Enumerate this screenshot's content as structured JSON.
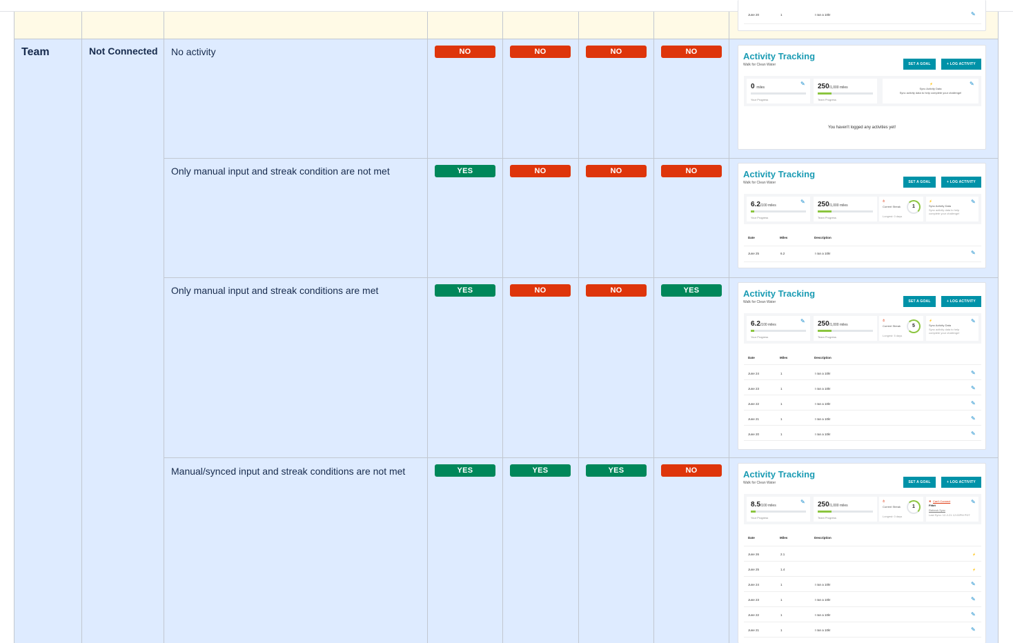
{
  "group": "Team",
  "status": "Not Connected",
  "top_row": {
    "date": "June 20",
    "miles": "1",
    "desc": "I ran a 10k!"
  },
  "card_common": {
    "title": "Activity Tracking",
    "subtitle": "Walk for Clean Water",
    "set_goal": "SET A GOAL",
    "log_activity": "+ LOG ACTIVITY",
    "your_progress": "Your Progress",
    "team_progress": "Team Progress",
    "team_value": "250",
    "team_unit": "/1,000 miles",
    "current_streak": "Current Streak",
    "sync_title": "Sync Activity Data",
    "sync_desc": "Sync activity data to help complete your challenge!",
    "col_date": "Date",
    "col_miles": "Miles",
    "col_desc": "Description",
    "run_desc": "I ran a 10k!"
  },
  "rows": [
    {
      "scenario": "No activity",
      "badges": [
        "NO",
        "NO",
        "NO",
        "NO"
      ],
      "your_value": "0",
      "your_unit": "miles",
      "empty_text": "You haven't logged any activities yet!"
    },
    {
      "scenario": "Only manual input and streak condition are not met",
      "badges": [
        "YES",
        "NO",
        "NO",
        "NO"
      ],
      "your_value": "6.2",
      "your_unit": "/100 miles",
      "streak_value": "1",
      "streak_longest": "Longest: 0 days",
      "activities": [
        {
          "date": "June 25",
          "miles": "6.2",
          "desc": "I ran a 10k!"
        }
      ]
    },
    {
      "scenario": "Only manual input and streak conditions are met",
      "badges": [
        "YES",
        "NO",
        "NO",
        "YES"
      ],
      "your_value": "6.2",
      "your_unit": "/100 miles",
      "streak_value": "5",
      "streak_longest": "Longest: 5 days",
      "activities": [
        {
          "date": "June 24",
          "miles": "1",
          "desc": "I ran a 10k!"
        },
        {
          "date": "June 23",
          "miles": "1",
          "desc": "I ran a 10k!"
        },
        {
          "date": "June 22",
          "miles": "1",
          "desc": "I ran a 10k!"
        },
        {
          "date": "June 21",
          "miles": "1",
          "desc": "I ran a 10k!"
        },
        {
          "date": "June 20",
          "miles": "1",
          "desc": "I ran a 10k!"
        }
      ]
    },
    {
      "scenario": "Manual/synced input and streak conditions are not met",
      "badges": [
        "YES",
        "YES",
        "YES",
        "NO"
      ],
      "your_value": "8.5",
      "your_unit": "/100 miles",
      "streak_value": "1",
      "streak_longest": "Longest: 0 days",
      "device_status": "Can't Connect",
      "device_name": "Fitbit",
      "device_refresh": "Refresh Sync",
      "device_last_sync": "Last Sync: 12-2-21 12:00PM PDT",
      "activities": [
        {
          "date": "June 26",
          "miles": "2.1",
          "desc": ""
        },
        {
          "date": "June 25",
          "miles": "1.4",
          "desc": ""
        },
        {
          "date": "June 24",
          "miles": "1",
          "desc": "I ran a 10k!"
        },
        {
          "date": "June 23",
          "miles": "1",
          "desc": "I ran a 10k!"
        },
        {
          "date": "June 22",
          "miles": "1",
          "desc": "I ran a 10k!"
        },
        {
          "date": "June 21",
          "miles": "1",
          "desc": "I ran a 10k!"
        }
      ]
    }
  ],
  "colors": {
    "no": "#de350b",
    "yes": "#00875a",
    "teal": "#1a9bb3",
    "cell_blue": "#deebff",
    "cell_yellow": "#fffae6"
  }
}
